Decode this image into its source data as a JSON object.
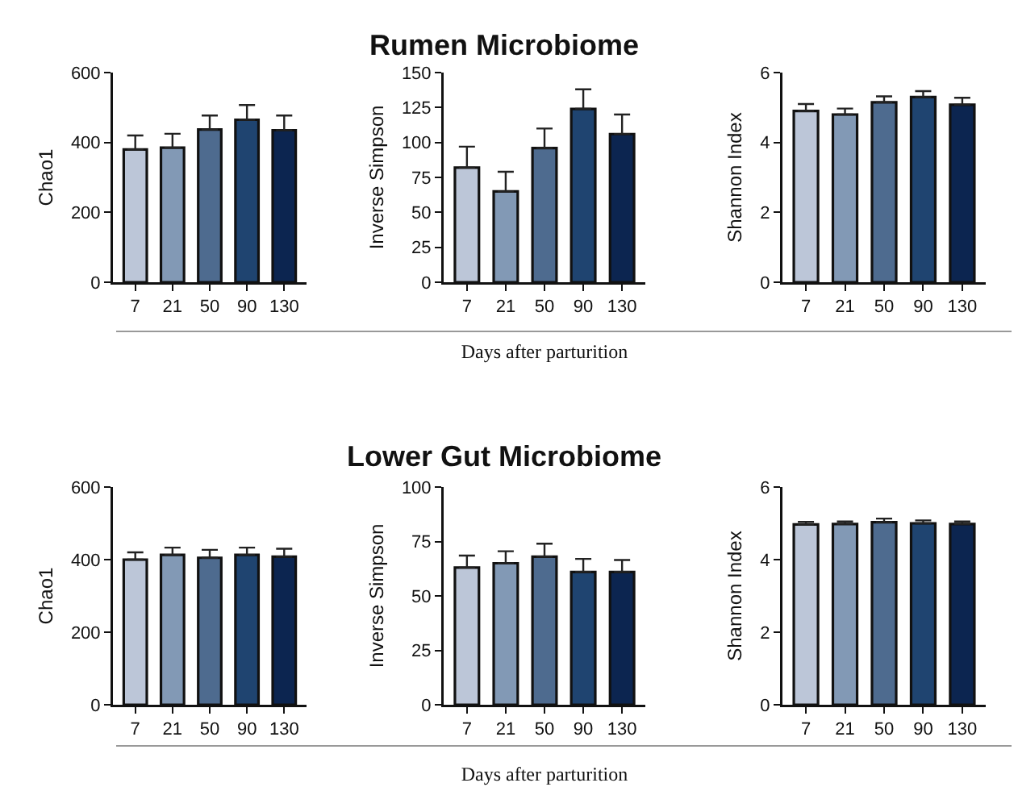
{
  "chart_data": [
    {
      "type": "bar",
      "ylabel": "Chao1",
      "categories": [
        "7",
        "21",
        "50",
        "90",
        "130"
      ],
      "values": [
        380,
        385,
        437,
        465,
        435
      ],
      "errors": [
        [
          380,
          420
        ],
        [
          385,
          425
        ],
        [
          437,
          477
        ],
        [
          465,
          507
        ],
        [
          435,
          477
        ]
      ],
      "colors": [
        "#bcc6d8",
        "#8299b5",
        "#4e6b8f",
        "#1f4470",
        "#0c2550"
      ],
      "ylim": [
        0,
        600
      ],
      "yticks": [
        0,
        200,
        400,
        600
      ]
    },
    {
      "type": "bar",
      "title": "Rumen Microbiome",
      "xlabel": "Days after parturition",
      "ylabel": "Inverse Simpson",
      "categories": [
        "7",
        "21",
        "50",
        "90",
        "130"
      ],
      "values": [
        82,
        65,
        96,
        124,
        106
      ],
      "errors": [
        [
          82,
          97
        ],
        [
          65,
          79
        ],
        [
          96,
          110
        ],
        [
          124,
          138
        ],
        [
          106,
          120
        ]
      ],
      "colors": [
        "#bcc6d8",
        "#8299b5",
        "#4e6b8f",
        "#1f4470",
        "#0c2550"
      ],
      "ylim": [
        0,
        150
      ],
      "yticks": [
        0,
        25,
        50,
        75,
        100,
        125,
        150
      ]
    },
    {
      "type": "bar",
      "ylabel": "Shannon Index",
      "categories": [
        "7",
        "21",
        "50",
        "90",
        "130"
      ],
      "values": [
        4.9,
        4.8,
        5.15,
        5.3,
        5.08
      ],
      "errors": [
        [
          4.9,
          5.1
        ],
        [
          4.8,
          4.97
        ],
        [
          5.15,
          5.32
        ],
        [
          5.3,
          5.47
        ],
        [
          5.08,
          5.28
        ]
      ],
      "colors": [
        "#bcc6d8",
        "#8299b5",
        "#4e6b8f",
        "#1f4470",
        "#0c2550"
      ],
      "ylim": [
        0,
        6
      ],
      "yticks": [
        0,
        2,
        4,
        6
      ]
    },
    {
      "type": "bar",
      "ylabel": "Chao1",
      "categories": [
        "7",
        "21",
        "50",
        "90",
        "130"
      ],
      "values": [
        400,
        413,
        405,
        413,
        408
      ],
      "errors": [
        [
          400,
          420
        ],
        [
          413,
          433
        ],
        [
          405,
          427
        ],
        [
          413,
          433
        ],
        [
          408,
          430
        ]
      ],
      "colors": [
        "#bcc6d8",
        "#8299b5",
        "#4e6b8f",
        "#1f4470",
        "#0c2550"
      ],
      "ylim": [
        0,
        600
      ],
      "yticks": [
        0,
        200,
        400,
        600
      ]
    },
    {
      "type": "bar",
      "title": "Lower Gut Microbiome",
      "xlabel": "Days after parturition",
      "ylabel": "Inverse Simpson",
      "categories": [
        "7",
        "21",
        "50",
        "90",
        "130"
      ],
      "values": [
        63,
        65,
        68,
        61,
        61
      ],
      "errors": [
        [
          63,
          68.5
        ],
        [
          65,
          70.5
        ],
        [
          68,
          74
        ],
        [
          61,
          67
        ],
        [
          61,
          66.5
        ]
      ],
      "colors": [
        "#bcc6d8",
        "#8299b5",
        "#4e6b8f",
        "#1f4470",
        "#0c2550"
      ],
      "ylim": [
        0,
        100
      ],
      "yticks": [
        0,
        25,
        50,
        75,
        100
      ]
    },
    {
      "type": "bar",
      "ylabel": "Shannon Index",
      "categories": [
        "7",
        "21",
        "50",
        "90",
        "130"
      ],
      "values": [
        4.97,
        4.98,
        5.03,
        5.0,
        4.98
      ],
      "errors": [
        [
          4.97,
          5.04
        ],
        [
          4.98,
          5.05
        ],
        [
          5.03,
          5.13
        ],
        [
          5.0,
          5.08
        ],
        [
          4.98,
          5.05
        ]
      ],
      "colors": [
        "#bcc6d8",
        "#8299b5",
        "#4e6b8f",
        "#1f4470",
        "#0c2550"
      ],
      "ylim": [
        0,
        6
      ],
      "yticks": [
        0,
        2,
        4,
        6
      ]
    }
  ]
}
